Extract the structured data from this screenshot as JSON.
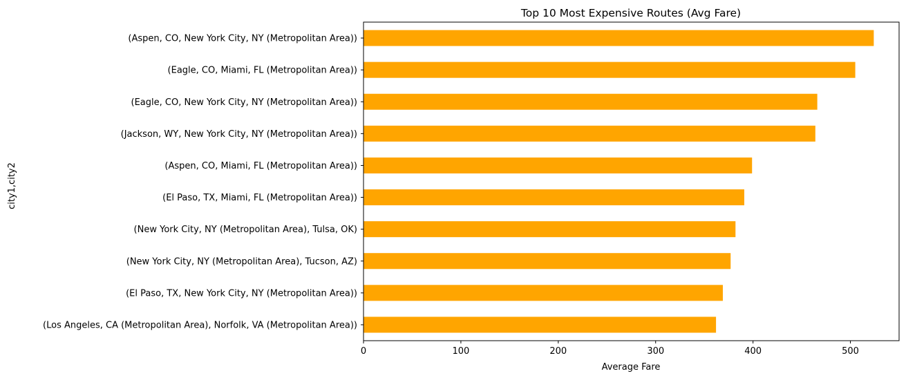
{
  "chart_data": {
    "type": "bar",
    "orientation": "horizontal",
    "title": "Top 10 Most Expensive Routes (Avg Fare)",
    "xlabel": "Average Fare",
    "ylabel": "city1,city2",
    "xlim": [
      0,
      550
    ],
    "xticks": [
      0,
      100,
      200,
      300,
      400,
      500
    ],
    "grid": false,
    "bar_color": "#ffa500",
    "categories": [
      "(Aspen, CO, New York City, NY (Metropolitan Area))",
      "(Eagle, CO, Miami, FL (Metropolitan Area))",
      "(Eagle, CO, New York City, NY (Metropolitan Area))",
      "(Jackson, WY, New York City, NY (Metropolitan Area))",
      "(Aspen, CO, Miami, FL (Metropolitan Area))",
      "(El Paso, TX, Miami, FL (Metropolitan Area))",
      "(New York City, NY (Metropolitan Area), Tulsa, OK)",
      "(New York City, NY (Metropolitan Area), Tucson, AZ)",
      "(El Paso, TX, New York City, NY (Metropolitan Area))",
      "(Los Angeles, CA (Metropolitan Area), Norfolk, VA (Metropolitan Area))"
    ],
    "values": [
      524,
      505,
      466,
      464,
      399,
      391,
      382,
      377,
      369,
      362
    ]
  }
}
